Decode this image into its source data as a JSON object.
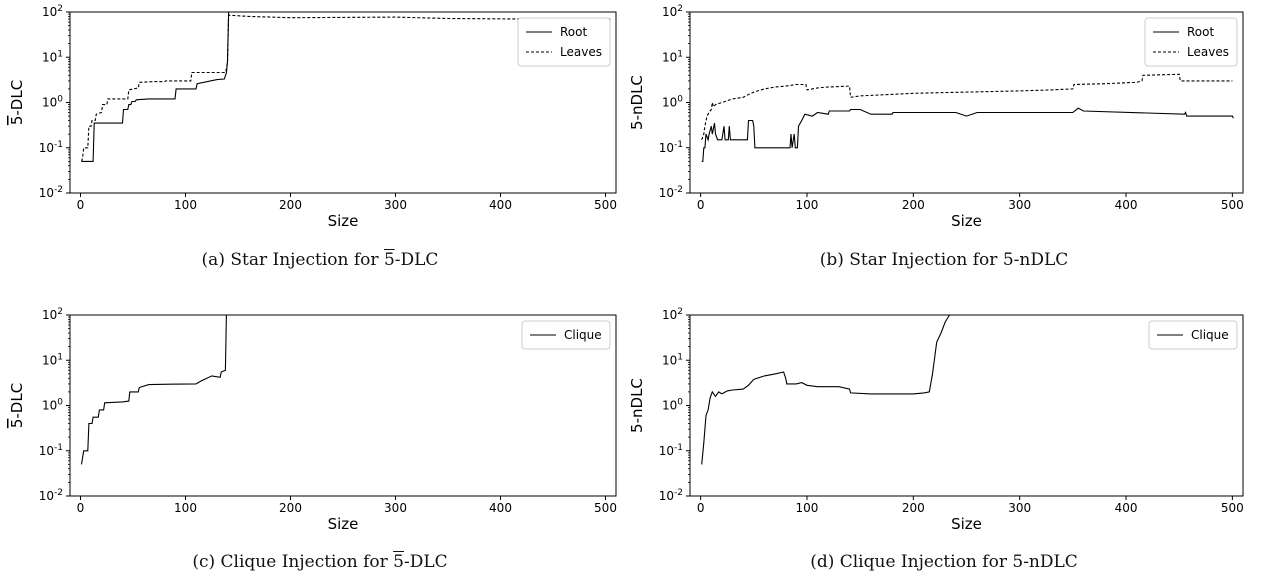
{
  "chart_data": [
    {
      "type": "line",
      "caption_prefix": "(a) Star Injection for ",
      "caption_metric": "5",
      "caption_suffix": "-DLC",
      "xlabel": "Size",
      "ylabel_digit": "5",
      "ylabel_rest": "-DLC",
      "ylabel_overline": true,
      "yscale": "log",
      "xlim": [
        -10,
        510
      ],
      "ylim": [
        0.01,
        100
      ],
      "xticks": [
        "0",
        "100",
        "200",
        "300",
        "400",
        "500"
      ],
      "yticks": [
        "10-2",
        "10-1",
        "100",
        "101",
        "102"
      ],
      "legend_position": "top-right",
      "series": [
        {
          "name": "Root",
          "style": "solid",
          "points": [
            [
              1,
              0.05
            ],
            [
              2,
              0.05
            ],
            [
              12,
              0.05
            ],
            [
              13,
              0.35
            ],
            [
              14,
              0.35
            ],
            [
              40,
              0.35
            ],
            [
              41,
              0.7
            ],
            [
              42,
              0.7
            ],
            [
              45,
              0.7
            ],
            [
              46,
              0.9
            ],
            [
              48,
              0.9
            ],
            [
              49,
              1.05
            ],
            [
              52,
              1.05
            ],
            [
              53,
              1.15
            ],
            [
              65,
              1.2
            ],
            [
              90,
              1.2
            ],
            [
              91,
              2.0
            ],
            [
              110,
              2.0
            ],
            [
              111,
              2.6
            ],
            [
              130,
              3.2
            ],
            [
              137,
              3.3
            ],
            [
              139,
              4.5
            ],
            [
              140,
              8
            ],
            [
              141,
              100
            ],
            [
              505,
              100
            ]
          ]
        },
        {
          "name": "Leaves",
          "style": "dashed",
          "points": [
            [
              1,
              0.05
            ],
            [
              2,
              0.06
            ],
            [
              3,
              0.1
            ],
            [
              7,
              0.1
            ],
            [
              8,
              0.3
            ],
            [
              10,
              0.3
            ],
            [
              11,
              0.4
            ],
            [
              14,
              0.4
            ],
            [
              15,
              0.55
            ],
            [
              20,
              0.6
            ],
            [
              21,
              0.9
            ],
            [
              25,
              0.9
            ],
            [
              26,
              1.2
            ],
            [
              45,
              1.2
            ],
            [
              46,
              1.9
            ],
            [
              55,
              2.1
            ],
            [
              56,
              2.8
            ],
            [
              70,
              2.9
            ],
            [
              80,
              2.9
            ],
            [
              81,
              3.0
            ],
            [
              105,
              3.0
            ],
            [
              106,
              4.6
            ],
            [
              138,
              4.6
            ],
            [
              139,
              5.5
            ],
            [
              140,
              8
            ],
            [
              141,
              85
            ],
            [
              160,
              80
            ],
            [
              200,
              75
            ],
            [
              300,
              77
            ],
            [
              350,
              72
            ],
            [
              420,
              70
            ],
            [
              505,
              70
            ]
          ]
        }
      ]
    },
    {
      "type": "line",
      "caption_prefix": "(b) Star Injection for ",
      "caption_metric": "5",
      "caption_suffix": "-nDLC",
      "xlabel": "Size",
      "ylabel_digit": "5",
      "ylabel_rest": "-nDLC",
      "ylabel_overline": false,
      "yscale": "log",
      "xlim": [
        -10,
        510
      ],
      "ylim": [
        0.01,
        100
      ],
      "xticks": [
        "0",
        "100",
        "200",
        "300",
        "400",
        "500"
      ],
      "yticks": [
        "10-2",
        "10-1",
        "100",
        "101",
        "102"
      ],
      "legend_position": "top-right",
      "series": [
        {
          "name": "Root",
          "style": "solid",
          "points": [
            [
              1,
              0.05
            ],
            [
              2,
              0.05
            ],
            [
              3,
              0.1
            ],
            [
              4,
              0.1
            ],
            [
              5,
              0.2
            ],
            [
              7,
              0.15
            ],
            [
              8,
              0.2
            ],
            [
              10,
              0.3
            ],
            [
              11,
              0.2
            ],
            [
              13,
              0.35
            ],
            [
              14,
              0.2
            ],
            [
              16,
              0.15
            ],
            [
              20,
              0.15
            ],
            [
              22,
              0.3
            ],
            [
              23,
              0.15
            ],
            [
              26,
              0.15
            ],
            [
              27,
              0.3
            ],
            [
              28,
              0.15
            ],
            [
              44,
              0.15
            ],
            [
              45,
              0.4
            ],
            [
              49,
              0.4
            ],
            [
              50,
              0.3
            ],
            [
              51,
              0.1
            ],
            [
              84,
              0.1
            ],
            [
              85,
              0.2
            ],
            [
              86,
              0.1
            ],
            [
              88,
              0.2
            ],
            [
              89,
              0.1
            ],
            [
              91,
              0.1
            ],
            [
              92,
              0.3
            ],
            [
              95,
              0.4
            ],
            [
              98,
              0.55
            ],
            [
              105,
              0.5
            ],
            [
              110,
              0.6
            ],
            [
              120,
              0.55
            ],
            [
              121,
              0.65
            ],
            [
              140,
              0.65
            ],
            [
              141,
              0.7
            ],
            [
              150,
              0.7
            ],
            [
              160,
              0.55
            ],
            [
              180,
              0.55
            ],
            [
              181,
              0.6
            ],
            [
              240,
              0.6
            ],
            [
              250,
              0.5
            ],
            [
              260,
              0.6
            ],
            [
              350,
              0.6
            ],
            [
              355,
              0.75
            ],
            [
              360,
              0.65
            ],
            [
              455,
              0.55
            ],
            [
              456,
              0.6
            ],
            [
              457,
              0.5
            ],
            [
              500,
              0.5
            ],
            [
              501,
              0.45
            ]
          ]
        },
        {
          "name": "Leaves",
          "style": "dashed",
          "points": [
            [
              1,
              0.15
            ],
            [
              3,
              0.2
            ],
            [
              4,
              0.3
            ],
            [
              6,
              0.5
            ],
            [
              8,
              0.6
            ],
            [
              10,
              0.7
            ],
            [
              11,
              1.0
            ],
            [
              12,
              0.8
            ],
            [
              14,
              0.9
            ],
            [
              20,
              1.0
            ],
            [
              30,
              1.2
            ],
            [
              40,
              1.3
            ],
            [
              45,
              1.5
            ],
            [
              50,
              1.7
            ],
            [
              60,
              2.0
            ],
            [
              70,
              2.2
            ],
            [
              80,
              2.3
            ],
            [
              90,
              2.5
            ],
            [
              99,
              2.5
            ],
            [
              100,
              1.9
            ],
            [
              110,
              2.1
            ],
            [
              120,
              2.2
            ],
            [
              140,
              2.3
            ],
            [
              141,
              1.3
            ],
            [
              150,
              1.4
            ],
            [
              200,
              1.6
            ],
            [
              250,
              1.7
            ],
            [
              300,
              1.8
            ],
            [
              330,
              1.9
            ],
            [
              350,
              2.0
            ],
            [
              351,
              2.5
            ],
            [
              380,
              2.6
            ],
            [
              410,
              2.8
            ],
            [
              415,
              3.0
            ],
            [
              416,
              4.0
            ],
            [
              450,
              4.2
            ],
            [
              451,
              3.0
            ],
            [
              500,
              3.0
            ]
          ]
        }
      ]
    },
    {
      "type": "line",
      "caption_prefix": "(c) Clique Injection for ",
      "caption_metric": "5",
      "caption_suffix": "-DLC",
      "xlabel": "Size",
      "ylabel_digit": "5",
      "ylabel_rest": "-DLC",
      "ylabel_overline": true,
      "yscale": "log",
      "xlim": [
        -10,
        510
      ],
      "ylim": [
        0.01,
        100
      ],
      "xticks": [
        "0",
        "100",
        "200",
        "300",
        "400",
        "500"
      ],
      "yticks": [
        "10-2",
        "10-1",
        "100",
        "101",
        "102"
      ],
      "legend_position": "top-right",
      "series": [
        {
          "name": "Clique",
          "style": "solid",
          "points": [
            [
              1,
              0.05
            ],
            [
              3,
              0.1
            ],
            [
              7,
              0.1
            ],
            [
              8,
              0.4
            ],
            [
              11,
              0.4
            ],
            [
              12,
              0.55
            ],
            [
              17,
              0.55
            ],
            [
              18,
              0.8
            ],
            [
              22,
              0.8
            ],
            [
              23,
              1.15
            ],
            [
              40,
              1.2
            ],
            [
              46,
              1.25
            ],
            [
              47,
              2.0
            ],
            [
              55,
              2.0
            ],
            [
              56,
              2.5
            ],
            [
              65,
              2.9
            ],
            [
              85,
              2.95
            ],
            [
              110,
              3.0
            ],
            [
              115,
              3.5
            ],
            [
              125,
              4.5
            ],
            [
              133,
              4.2
            ],
            [
              134,
              5.5
            ],
            [
              138,
              6
            ],
            [
              139,
              100
            ],
            [
              505,
              100
            ]
          ]
        }
      ]
    },
    {
      "type": "line",
      "caption_prefix": "(d) Clique Injection for ",
      "caption_metric": "5",
      "caption_suffix": "-nDLC",
      "xlabel": "Size",
      "ylabel_digit": "5",
      "ylabel_rest": "-nDLC",
      "ylabel_overline": false,
      "yscale": "log",
      "xlim": [
        -10,
        510
      ],
      "ylim": [
        0.01,
        100
      ],
      "xticks": [
        "0",
        "100",
        "200",
        "300",
        "400",
        "500"
      ],
      "yticks": [
        "10-2",
        "10-1",
        "100",
        "101",
        "102"
      ],
      "legend_position": "top-right",
      "series": [
        {
          "name": "Clique",
          "style": "solid",
          "points": [
            [
              1,
              0.05
            ],
            [
              3,
              0.15
            ],
            [
              5,
              0.6
            ],
            [
              7,
              0.8
            ],
            [
              9,
              1.5
            ],
            [
              11,
              2.0
            ],
            [
              14,
              1.6
            ],
            [
              17,
              2.0
            ],
            [
              20,
              1.8
            ],
            [
              25,
              2.1
            ],
            [
              30,
              2.2
            ],
            [
              40,
              2.3
            ],
            [
              45,
              2.8
            ],
            [
              50,
              3.8
            ],
            [
              60,
              4.5
            ],
            [
              70,
              5.0
            ],
            [
              78,
              5.5
            ],
            [
              80,
              4.0
            ],
            [
              81,
              3.0
            ],
            [
              90,
              3.0
            ],
            [
              95,
              3.2
            ],
            [
              100,
              2.8
            ],
            [
              110,
              2.6
            ],
            [
              130,
              2.6
            ],
            [
              140,
              2.3
            ],
            [
              141,
              1.9
            ],
            [
              160,
              1.8
            ],
            [
              200,
              1.8
            ],
            [
              210,
              1.9
            ],
            [
              215,
              2.0
            ],
            [
              218,
              5
            ],
            [
              222,
              25
            ],
            [
              226,
              40
            ],
            [
              230,
              70
            ],
            [
              234,
              100
            ],
            [
              505,
              100
            ]
          ]
        }
      ]
    }
  ]
}
